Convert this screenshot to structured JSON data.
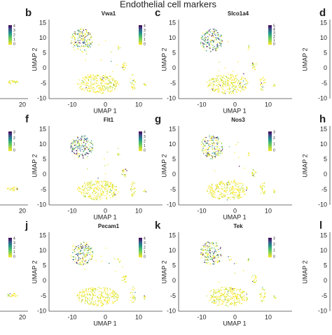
{
  "title": "Endothelial cell markers",
  "axes": {
    "x_label": "UMAP 1",
    "y_label": "UMAP 2",
    "xticks": [
      "-10",
      "0",
      "10"
    ],
    "yticks": [
      "15",
      "10",
      "5",
      "0",
      "-5",
      "-10"
    ],
    "cut_xtick": "20"
  },
  "rows": [
    {
      "left_colorbar": [
        "4",
        "3",
        "2",
        "1",
        "0"
      ],
      "right_letter": "d",
      "panels": [
        {
          "letter": "b",
          "gene": "Vwa1",
          "colorbar": [
            "4",
            "3",
            "2",
            "1",
            "0"
          ]
        },
        {
          "letter": "c",
          "gene": "Slco1a4",
          "colorbar": [
            "5",
            "4",
            "3",
            "2",
            "1",
            "0"
          ]
        }
      ]
    },
    {
      "left_colorbar": [
        "3",
        "2",
        "1",
        "0"
      ],
      "right_letter": "h",
      "panels": [
        {
          "letter": "f",
          "gene": "Flt1",
          "colorbar": [
            "4",
            "3",
            "2",
            "1",
            "0"
          ]
        },
        {
          "letter": "g",
          "gene": "Nos3",
          "colorbar": [
            "3",
            "2",
            "1",
            "0"
          ]
        }
      ]
    },
    {
      "left_colorbar": [
        "4",
        "3",
        "2",
        "1",
        "0"
      ],
      "right_letter": "l",
      "panels": [
        {
          "letter": "j",
          "gene": "Pecam1",
          "colorbar": [
            "4",
            "3",
            "2",
            "1",
            "0"
          ]
        },
        {
          "letter": "k",
          "gene": "Tek",
          "colorbar": [
            "3",
            "2",
            "1",
            "0"
          ]
        }
      ]
    }
  ]
}
